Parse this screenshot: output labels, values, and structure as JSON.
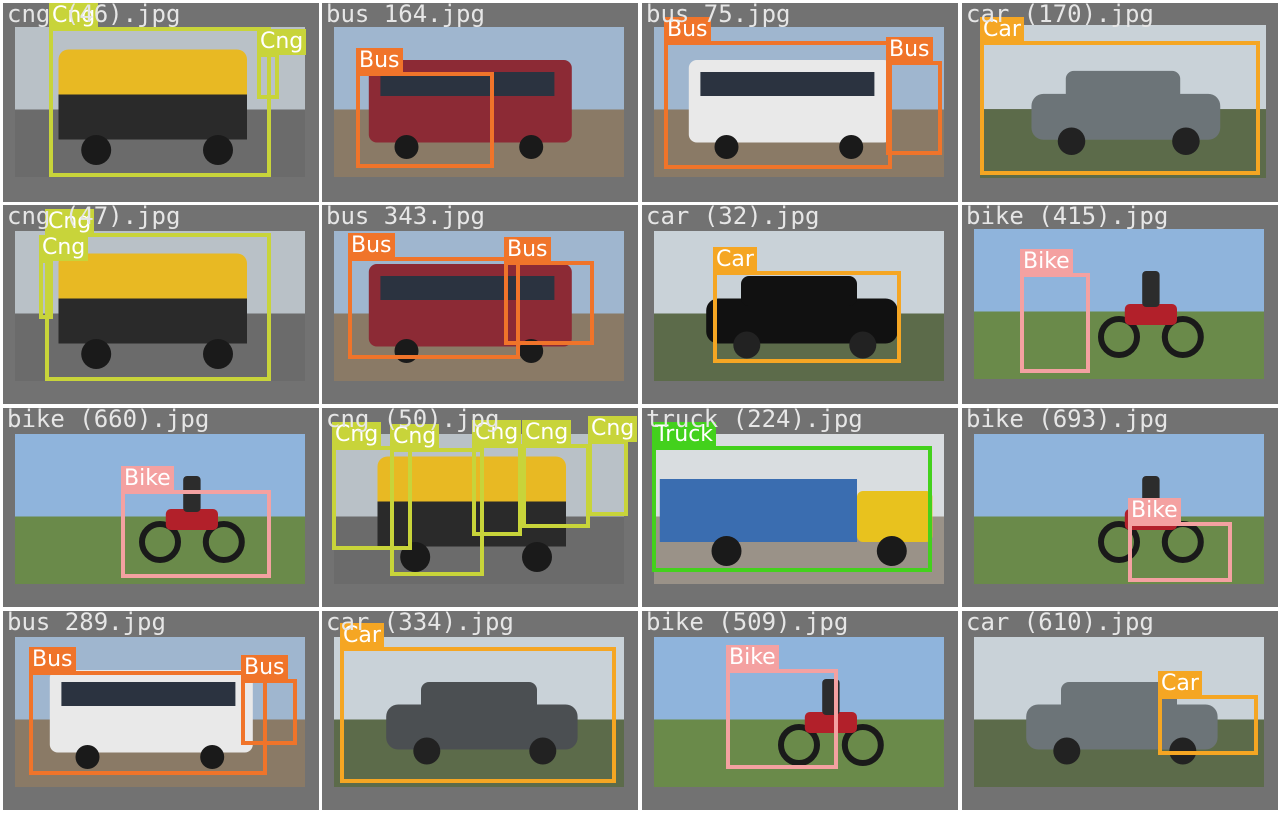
{
  "colors": {
    "Cng": "#c8d43a",
    "Bus": "#f0742a",
    "Car": "#f5a623",
    "Bike": "#f4a1a1",
    "Truck": "#43d11c",
    "tile_bg": "#727272",
    "filename_text": "#e6e6e6"
  },
  "tiles": [
    {
      "filename": "cng (46).jpg",
      "scene": "cng",
      "labels": [
        "Cng",
        "Cng"
      ]
    },
    {
      "filename": "bus 164.jpg",
      "scene": "bus",
      "labels": [
        "Bus"
      ]
    },
    {
      "filename": "bus 75.jpg",
      "scene": "bus",
      "labels": [
        "Bus",
        "Bus"
      ]
    },
    {
      "filename": "car (170).jpg",
      "scene": "car",
      "labels": [
        "Car"
      ]
    },
    {
      "filename": "cng (47).jpg",
      "scene": "cng",
      "labels": [
        "Cng",
        "Cng"
      ]
    },
    {
      "filename": "bus 343.jpg",
      "scene": "bus",
      "labels": [
        "Bus",
        "Bus"
      ]
    },
    {
      "filename": "car (32).jpg",
      "scene": "car",
      "labels": [
        "Car"
      ]
    },
    {
      "filename": "bike (415).jpg",
      "scene": "bike",
      "labels": [
        "Bike"
      ]
    },
    {
      "filename": "bike (660).jpg",
      "scene": "bike",
      "labels": [
        "Bike"
      ]
    },
    {
      "filename": "cng (50).jpg",
      "scene": "cng",
      "labels": [
        "Cng",
        "Cng",
        "Cng",
        "Cng",
        "Cng"
      ]
    },
    {
      "filename": "truck (224).jpg",
      "scene": "truck",
      "labels": [
        "Truck"
      ]
    },
    {
      "filename": "bike (693).jpg",
      "scene": "bike",
      "labels": [
        "Bike"
      ]
    },
    {
      "filename": "bus 289.jpg",
      "scene": "bus",
      "labels": [
        "Bus",
        "Bus"
      ]
    },
    {
      "filename": "car (334).jpg",
      "scene": "car",
      "labels": [
        "Car"
      ]
    },
    {
      "filename": "bike (509).jpg",
      "scene": "bike",
      "labels": [
        "Bike"
      ]
    },
    {
      "filename": "car (610).jpg",
      "scene": "car",
      "labels": [
        "Car"
      ]
    }
  ]
}
